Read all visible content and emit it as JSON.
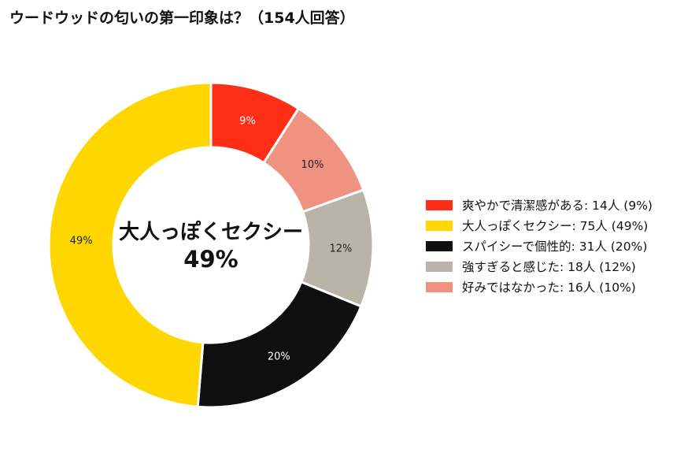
{
  "chart_data": {
    "type": "pie",
    "title": "ウードウッドの匂いの第一印象は？（154人回答）",
    "total": 154,
    "slices": [
      {
        "label": "爽やかで清潔感がある",
        "count": 14,
        "percent": 9,
        "pct_text": "9%",
        "legend_text": "爽やかで清潔感がある:  14人 (9%)",
        "color": "#FF2E17",
        "pct_color": "#ffffff"
      },
      {
        "label": "大人っぽくセクシー",
        "count": 75,
        "percent": 49,
        "pct_text": "49%",
        "legend_text": "大人っぽくセクシー:  75人 (49%)",
        "color": "#FFD600",
        "pct_color": "#222222"
      },
      {
        "label": "スパイシーで個性的",
        "count": 31,
        "percent": 20,
        "pct_text": "20%",
        "legend_text": "スパイシーで個性的:  31人 (20%)",
        "color": "#0F0F0F",
        "pct_color": "#ffffff"
      },
      {
        "label": "強すぎると感じた",
        "count": 18,
        "percent": 12,
        "pct_text": "12%",
        "legend_text": "強すぎると感じた:  18人 (12%)",
        "color": "#B9B4A7",
        "pct_color": "#222222"
      },
      {
        "label": "好みではなかった",
        "count": 16,
        "percent": 10,
        "pct_text": "10%",
        "legend_text": "好みではなかった:  16人 (10%)",
        "color": "#F09282",
        "pct_color": "#222222"
      }
    ],
    "slice_order_clockwise_from_top": [
      0,
      4,
      3,
      2,
      1
    ],
    "center_label": "大人っぽくセクシー",
    "center_value": "49%",
    "legend_position": "right"
  }
}
